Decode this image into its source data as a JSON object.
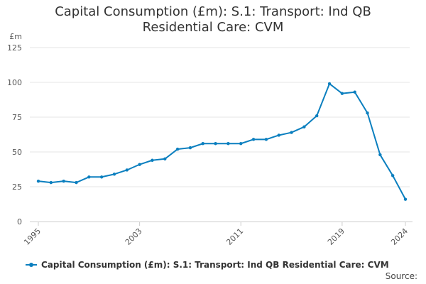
{
  "colors": {
    "series": "#0b7fbf",
    "grid": "#e6e6e6",
    "axis": "#cccccc",
    "text": "#333333"
  },
  "source_label": "Source:",
  "chart_data": {
    "type": "line",
    "title_lines": [
      "Capital Consumption (£m): S.1: Transport: Ind QB",
      "Residential Care: CVM"
    ],
    "ylabel": "£m",
    "xlabel": "",
    "ylim": [
      0,
      125
    ],
    "yticks": [
      0,
      25,
      50,
      75,
      100,
      125
    ],
    "xlim": [
      1995,
      2024
    ],
    "xticks": [
      1995,
      2003,
      2011,
      2019,
      2024
    ],
    "grid": true,
    "legend_position": "bottom",
    "series": [
      {
        "name": "Capital Consumption (£m): S.1: Transport: Ind QB Residential Care: CVM",
        "x": [
          1995,
          1996,
          1997,
          1998,
          1999,
          2000,
          2001,
          2002,
          2003,
          2004,
          2005,
          2006,
          2007,
          2008,
          2009,
          2010,
          2011,
          2012,
          2013,
          2014,
          2015,
          2016,
          2017,
          2018,
          2019,
          2020,
          2021,
          2022,
          2023,
          2024
        ],
        "values": [
          29,
          28,
          29,
          28,
          32,
          32,
          34,
          37,
          41,
          44,
          45,
          52,
          53,
          56,
          56,
          56,
          56,
          59,
          59,
          62,
          64,
          68,
          76,
          99,
          92,
          93,
          78,
          48,
          33,
          16
        ]
      }
    ]
  }
}
